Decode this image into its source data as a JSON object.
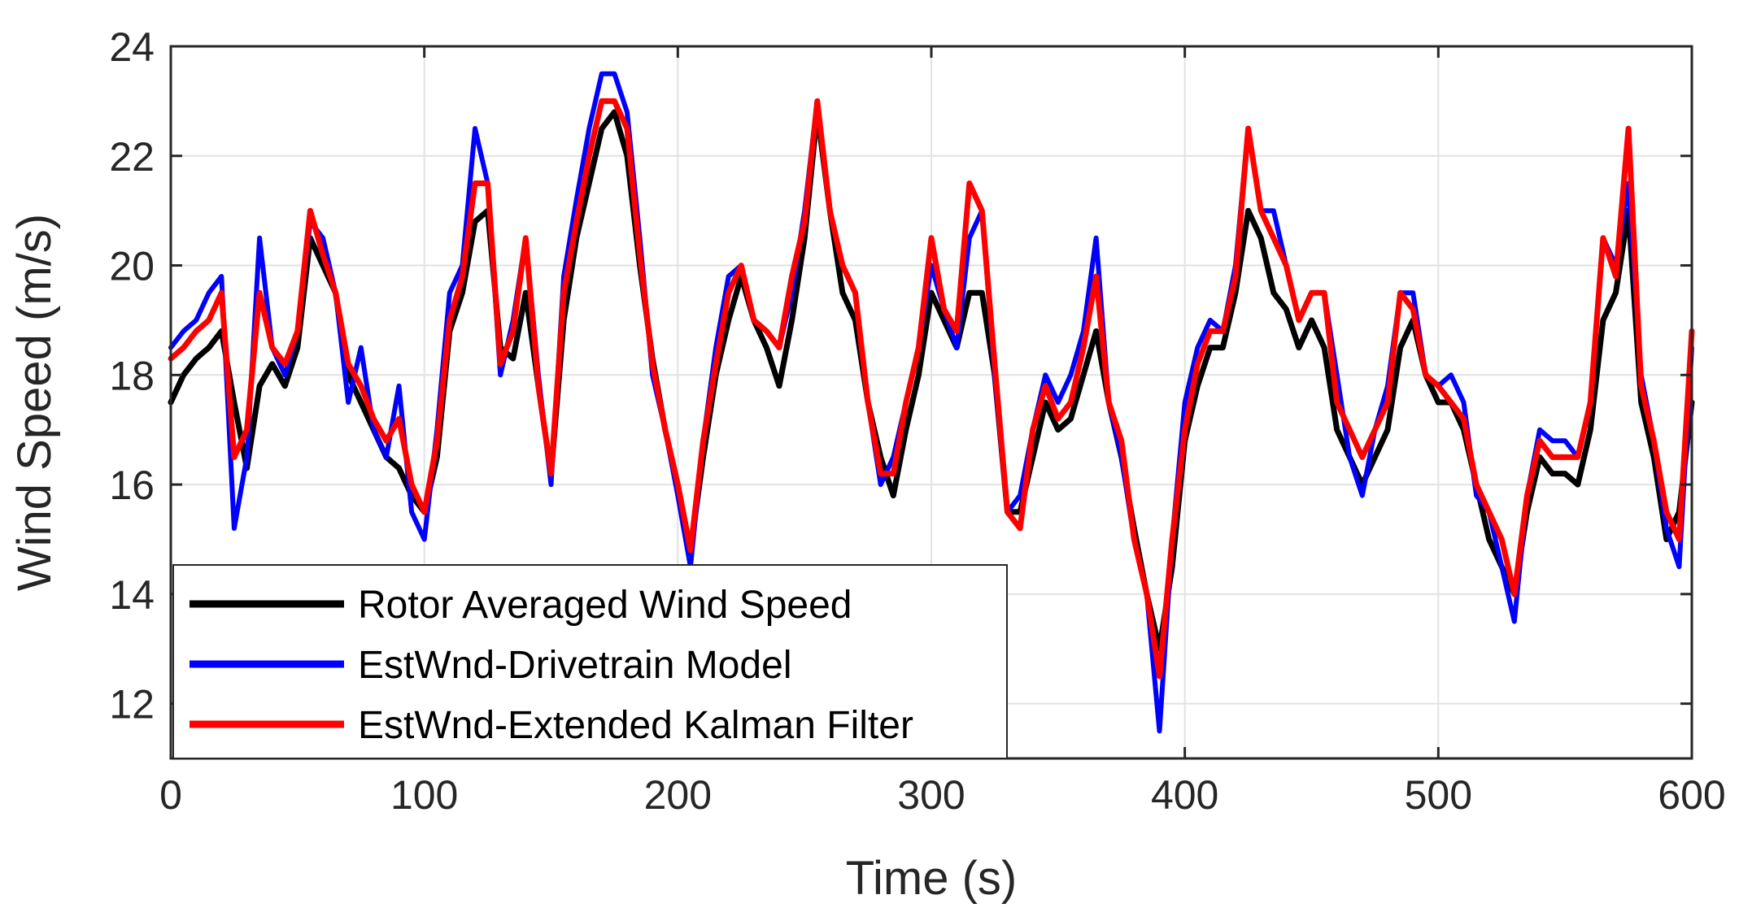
{
  "chart_data": {
    "type": "line",
    "title": "",
    "xlabel": "Time (s)",
    "ylabel": "Wind Speed (m/s)",
    "xlim": [
      0,
      600
    ],
    "ylim": [
      11,
      24
    ],
    "xticks": [
      0,
      100,
      200,
      300,
      400,
      500,
      600
    ],
    "yticks": [
      12,
      14,
      16,
      18,
      20,
      22,
      24
    ],
    "xtick_labels": [
      "0",
      "100",
      "200",
      "300",
      "400",
      "500",
      "600"
    ],
    "ytick_labels": [
      "12",
      "14",
      "16",
      "18",
      "20",
      "22",
      "24"
    ],
    "grid": true,
    "legend_position": "lower-left",
    "x": [
      0,
      5,
      10,
      15,
      20,
      25,
      30,
      35,
      40,
      45,
      50,
      55,
      60,
      65,
      70,
      75,
      80,
      85,
      90,
      95,
      100,
      105,
      110,
      115,
      120,
      125,
      130,
      135,
      140,
      145,
      150,
      155,
      160,
      165,
      170,
      175,
      180,
      185,
      190,
      195,
      200,
      205,
      210,
      215,
      220,
      225,
      230,
      235,
      240,
      245,
      250,
      255,
      260,
      265,
      270,
      275,
      280,
      285,
      290,
      295,
      300,
      305,
      310,
      315,
      320,
      325,
      330,
      335,
      340,
      345,
      350,
      355,
      360,
      365,
      370,
      375,
      380,
      385,
      390,
      395,
      400,
      405,
      410,
      415,
      420,
      425,
      430,
      435,
      440,
      445,
      450,
      455,
      460,
      465,
      470,
      475,
      480,
      485,
      490,
      495,
      500,
      505,
      510,
      515,
      520,
      525,
      530,
      535,
      540,
      545,
      550,
      555,
      560,
      565,
      570,
      575,
      580,
      585,
      590,
      595,
      600
    ],
    "series": [
      {
        "name": "Rotor Averaged Wind Speed",
        "color": "#000000",
        "values": [
          17.5,
          18.0,
          18.3,
          18.5,
          18.8,
          17.5,
          16.3,
          17.8,
          18.2,
          17.8,
          18.5,
          20.5,
          20.0,
          19.5,
          18.0,
          17.5,
          17.0,
          16.5,
          16.3,
          15.8,
          15.5,
          16.5,
          18.8,
          19.5,
          20.8,
          21.0,
          18.5,
          18.3,
          19.5,
          17.8,
          16.2,
          19.0,
          20.5,
          21.5,
          22.5,
          22.8,
          22.0,
          20.0,
          18.3,
          17.0,
          16.0,
          14.8,
          16.5,
          18.0,
          19.0,
          19.8,
          19.0,
          18.5,
          17.8,
          19.0,
          20.5,
          22.8,
          21.0,
          19.5,
          19.0,
          17.5,
          16.5,
          15.8,
          17.0,
          18.0,
          19.5,
          19.0,
          18.5,
          19.5,
          19.5,
          18.0,
          15.5,
          15.5,
          16.5,
          17.5,
          17.0,
          17.2,
          18.0,
          18.8,
          17.5,
          16.5,
          15.2,
          14.0,
          13.0,
          14.5,
          16.8,
          17.8,
          18.5,
          18.5,
          19.5,
          21.0,
          20.5,
          19.5,
          19.2,
          18.5,
          19.0,
          18.5,
          17.0,
          16.5,
          16.0,
          16.5,
          17.0,
          18.5,
          19.0,
          18.0,
          17.5,
          17.5,
          17.0,
          16.0,
          15.0,
          14.5,
          14.0,
          15.5,
          16.5,
          16.2,
          16.2,
          16.0,
          17.0,
          19.0,
          19.5,
          21.0,
          17.5,
          16.5,
          15.0,
          15.5,
          17.5
        ]
      },
      {
        "name": "EstWnd-Drivetrain Model",
        "color": "#0000ff",
        "values": [
          18.5,
          18.8,
          19.0,
          19.5,
          19.8,
          15.2,
          16.5,
          20.5,
          18.5,
          18.0,
          18.8,
          20.8,
          20.5,
          19.5,
          17.5,
          18.5,
          17.0,
          16.5,
          17.8,
          15.5,
          15.0,
          17.0,
          19.5,
          20.0,
          22.5,
          21.5,
          18.0,
          19.0,
          20.5,
          18.0,
          16.0,
          19.8,
          21.2,
          22.5,
          23.5,
          23.5,
          22.8,
          20.5,
          18.0,
          17.0,
          15.8,
          14.5,
          16.8,
          18.5,
          19.8,
          20.0,
          19.0,
          18.8,
          18.5,
          19.5,
          21.0,
          23.0,
          21.0,
          20.0,
          19.5,
          17.5,
          16.0,
          16.5,
          17.5,
          18.5,
          20.0,
          19.2,
          18.5,
          20.5,
          21.0,
          18.0,
          15.5,
          15.8,
          17.0,
          18.0,
          17.5,
          18.0,
          18.8,
          20.5,
          17.5,
          16.5,
          15.0,
          14.0,
          11.5,
          15.0,
          17.5,
          18.5,
          19.0,
          18.8,
          20.0,
          22.5,
          21.0,
          21.0,
          20.0,
          19.0,
          19.5,
          19.5,
          18.0,
          16.5,
          15.8,
          17.0,
          17.8,
          19.5,
          19.5,
          18.0,
          17.8,
          18.0,
          17.5,
          15.8,
          15.5,
          14.5,
          13.5,
          15.8,
          17.0,
          16.8,
          16.8,
          16.5,
          17.5,
          20.5,
          20.0,
          21.5,
          18.0,
          16.8,
          15.2,
          14.5,
          18.5
        ]
      },
      {
        "name": "EstWnd-Extended Kalman Filter",
        "color": "#ff0000",
        "values": [
          18.3,
          18.5,
          18.8,
          19.0,
          19.5,
          16.5,
          17.0,
          19.5,
          18.5,
          18.2,
          18.8,
          21.0,
          20.2,
          19.5,
          18.2,
          17.8,
          17.2,
          16.8,
          17.2,
          16.0,
          15.5,
          16.8,
          19.0,
          19.8,
          21.5,
          21.5,
          18.2,
          18.8,
          20.5,
          17.8,
          16.2,
          19.5,
          20.8,
          22.0,
          23.0,
          23.0,
          22.5,
          20.2,
          18.2,
          17.0,
          16.0,
          14.8,
          16.8,
          18.2,
          19.5,
          20.0,
          19.0,
          18.8,
          18.5,
          19.8,
          20.8,
          23.0,
          21.0,
          20.0,
          19.5,
          17.5,
          16.2,
          16.2,
          17.5,
          18.5,
          20.5,
          19.2,
          18.8,
          21.5,
          21.0,
          18.2,
          15.5,
          15.2,
          17.0,
          17.8,
          17.2,
          17.5,
          18.5,
          19.8,
          17.5,
          16.8,
          15.0,
          14.0,
          12.5,
          15.0,
          17.0,
          18.2,
          18.8,
          18.8,
          19.8,
          22.5,
          21.0,
          20.5,
          20.0,
          19.0,
          19.5,
          19.5,
          17.5,
          17.0,
          16.5,
          17.0,
          17.5,
          19.5,
          19.2,
          18.0,
          17.8,
          17.5,
          17.2,
          16.0,
          15.5,
          15.0,
          14.0,
          15.8,
          16.8,
          16.5,
          16.5,
          16.5,
          17.5,
          20.5,
          19.8,
          22.5,
          17.8,
          16.8,
          15.5,
          15.0,
          18.8
        ]
      }
    ]
  }
}
